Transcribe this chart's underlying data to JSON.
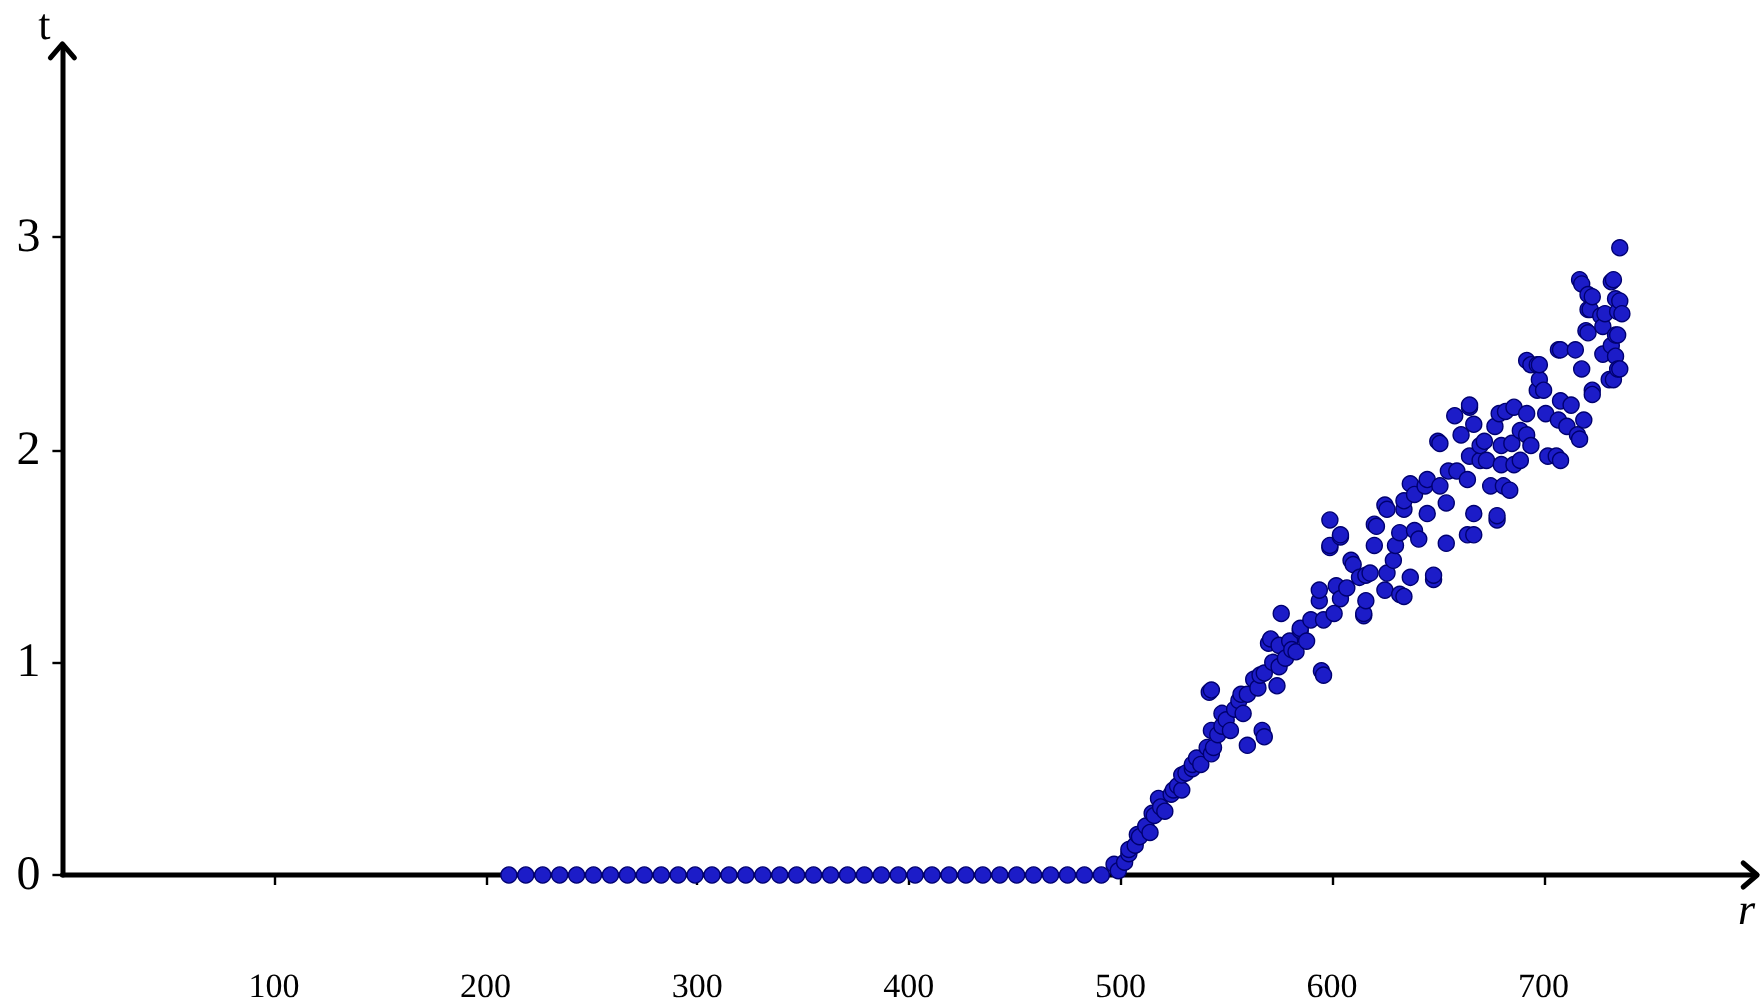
{
  "chart_data": {
    "type": "scatter",
    "xlabel": "r",
    "ylabel": "t",
    "color": "#1c1cc8",
    "marker": "circle",
    "xlim": [
      0,
      800
    ],
    "ylim": [
      0,
      3.9
    ],
    "xticks": [
      100,
      200,
      300,
      400,
      500,
      600,
      700
    ],
    "yticks": [
      0,
      1,
      2,
      3
    ],
    "x": [
      211,
      219,
      227,
      235,
      243,
      251,
      259,
      267,
      275,
      283,
      291,
      299,
      307,
      315,
      323,
      331,
      339,
      347,
      355,
      363,
      371,
      379,
      387,
      395,
      403,
      411,
      419,
      427,
      435,
      443,
      451,
      459,
      467,
      475,
      483,
      491,
      497,
      499,
      502,
      504,
      504,
      507,
      508,
      509,
      512,
      514,
      515,
      516,
      518,
      519,
      521,
      524,
      525,
      527,
      529,
      529,
      531,
      534,
      534,
      536,
      538,
      541,
      542,
      543,
      543,
      543,
      544,
      546,
      548,
      548,
      550,
      552,
      554,
      556,
      557,
      558,
      560,
      560,
      563,
      565,
      566,
      567,
      568,
      568,
      570,
      571,
      572,
      574,
      575,
      575,
      576,
      578,
      580,
      581,
      583,
      585,
      585,
      588,
      590,
      594,
      594,
      595,
      596,
      596,
      599,
      599,
      599,
      601,
      602,
      604,
      604,
      604,
      607,
      609,
      610,
      613,
      615,
      615,
      616,
      616,
      618,
      620,
      620,
      621,
      625,
      625,
      626,
      626,
      629,
      630,
      632,
      632,
      634,
      634,
      634,
      637,
      637,
      639,
      639,
      641,
      644,
      645,
      645,
      648,
      648,
      650,
      651,
      651,
      654,
      654,
      655,
      658,
      659,
      661,
      664,
      664,
      665,
      665,
      665,
      667,
      667,
      667,
      670,
      670,
      672,
      673,
      675,
      677,
      678,
      678,
      679,
      680,
      680,
      681,
      682,
      684,
      685,
      686,
      686,
      689,
      689,
      692,
      692,
      692,
      694,
      694,
      697,
      697,
      698,
      698,
      700,
      701,
      702,
      706,
      707,
      707,
      708,
      708,
      708,
      711,
      713,
      715,
      716,
      717,
      717,
      718,
      718,
      719,
      720,
      721,
      721,
      721,
      722,
      723,
      723,
      723,
      727,
      728,
      728,
      729,
      731,
      732,
      732,
      733,
      733,
      734,
      734,
      734,
      735,
      735,
      735,
      736,
      736,
      736,
      737
    ],
    "values": [
      0,
      0,
      0,
      0,
      0,
      0,
      0,
      0,
      0,
      0,
      0,
      0,
      0,
      0,
      0,
      0,
      0,
      0,
      0,
      0,
      0,
      0,
      0,
      0,
      0,
      0,
      0,
      0,
      0,
      0,
      0,
      0,
      0,
      0,
      0,
      0,
      0.05,
      0.02,
      0.06,
      0.1,
      0.12,
      0.14,
      0.19,
      0.18,
      0.23,
      0.2,
      0.29,
      0.28,
      0.36,
      0.32,
      0.3,
      0.38,
      0.4,
      0.42,
      0.4,
      0.47,
      0.48,
      0.5,
      0.52,
      0.55,
      0.52,
      0.6,
      0.86,
      0.57,
      0.68,
      0.87,
      0.6,
      0.66,
      0.7,
      0.76,
      0.73,
      0.68,
      0.78,
      0.82,
      0.85,
      0.76,
      0.85,
      0.61,
      0.92,
      0.88,
      0.94,
      0.68,
      0.65,
      0.95,
      1.09,
      1.11,
      1.0,
      0.89,
      0.98,
      1.08,
      1.23,
      1.02,
      1.1,
      1.06,
      1.05,
      1.15,
      1.16,
      1.1,
      1.2,
      1.29,
      1.34,
      0.96,
      0.94,
      1.2,
      1.67,
      1.54,
      1.55,
      1.23,
      1.36,
      1.59,
      1.3,
      1.6,
      1.35,
      1.48,
      1.46,
      1.4,
      1.22,
      1.23,
      1.29,
      1.41,
      1.42,
      1.55,
      1.65,
      1.64,
      1.34,
      1.74,
      1.72,
      1.42,
      1.48,
      1.55,
      1.61,
      1.32,
      1.31,
      1.72,
      1.76,
      1.4,
      1.84,
      1.79,
      1.62,
      1.58,
      1.83,
      1.7,
      1.86,
      1.39,
      1.41,
      2.04,
      1.83,
      2.03,
      1.56,
      1.75,
      1.9,
      2.16,
      1.9,
      2.07,
      1.86,
      1.6,
      2.2,
      1.97,
      2.21,
      1.6,
      1.7,
      2.12,
      1.95,
      2.02,
      2.04,
      1.95,
      1.83,
      2.11,
      1.67,
      1.69,
      2.17,
      1.93,
      2.02,
      1.83,
      2.18,
      1.81,
      2.03,
      2.2,
      1.93,
      1.95,
      2.09,
      2.17,
      2.07,
      2.42,
      2.02,
      2.4,
      2.28,
      2.4,
      2.33,
      2.4,
      2.28,
      2.17,
      1.97,
      1.97,
      2.14,
      2.47,
      1.95,
      2.23,
      2.47,
      2.11,
      2.21,
      2.47,
      2.07,
      2.05,
      2.8,
      2.78,
      2.38,
      2.14,
      2.56,
      2.55,
      2.73,
      2.66,
      2.66,
      2.28,
      2.72,
      2.26,
      2.63,
      2.58,
      2.45,
      2.64,
      2.33,
      2.79,
      2.49,
      2.33,
      2.8,
      2.44,
      2.71,
      2.54,
      2.54,
      2.65,
      2.38,
      2.38,
      2.7,
      2.95,
      2.64
    ]
  }
}
